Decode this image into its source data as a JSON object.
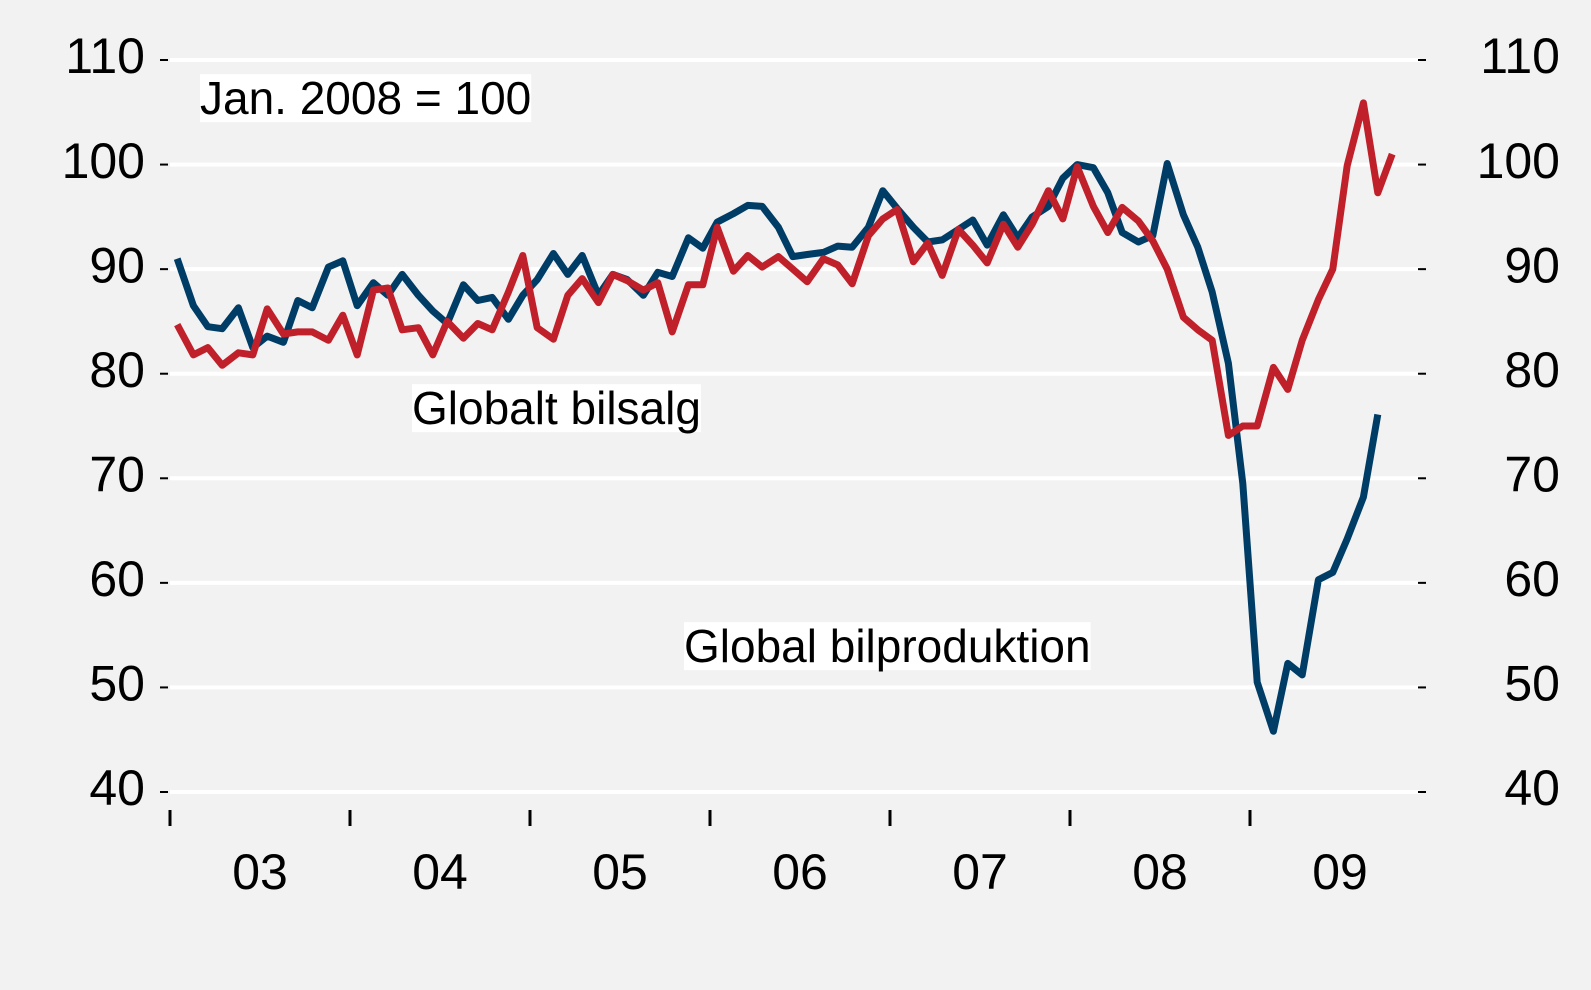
{
  "chart_data": {
    "type": "line",
    "annotations": [
      "Jan. 2008 = 100",
      "Globalt bilsalg",
      "Global bilproduktion"
    ],
    "x": [
      2003.04,
      2003.13,
      2003.21,
      2003.29,
      2003.38,
      2003.46,
      2003.54,
      2003.63,
      2003.71,
      2003.79,
      2003.88,
      2003.96,
      2004.04,
      2004.13,
      2004.21,
      2004.29,
      2004.38,
      2004.46,
      2004.54,
      2004.63,
      2004.71,
      2004.79,
      2004.88,
      2004.96,
      2005.04,
      2005.13,
      2005.21,
      2005.29,
      2005.38,
      2005.46,
      2005.54,
      2005.63,
      2005.71,
      2005.79,
      2005.88,
      2005.96,
      2006.04,
      2006.13,
      2006.21,
      2006.29,
      2006.38,
      2006.46,
      2006.54,
      2006.63,
      2006.71,
      2006.79,
      2006.88,
      2006.96,
      2007.04,
      2007.13,
      2007.21,
      2007.29,
      2007.38,
      2007.46,
      2007.54,
      2007.63,
      2007.71,
      2007.79,
      2007.88,
      2007.96,
      2008.04,
      2008.13,
      2008.21,
      2008.29,
      2008.38,
      2008.46,
      2008.54,
      2008.63,
      2008.71,
      2008.79,
      2008.88,
      2008.96,
      2009.04,
      2009.13,
      2009.21,
      2009.29,
      2009.38,
      2009.46,
      2009.54,
      2009.63,
      2009.71,
      2009.79
    ],
    "series": [
      {
        "name": "Global bilproduktion",
        "color": "#003d66",
        "values": [
          91,
          86.5,
          84.5,
          84.3,
          86.3,
          82.5,
          83.6,
          83,
          87,
          86.3,
          90.2,
          90.8,
          86.5,
          88.7,
          87.5,
          89.5,
          87.5,
          86,
          84.8,
          88.5,
          87,
          87.3,
          85.2,
          87.5,
          89,
          91.5,
          89.5,
          91.3,
          87.5,
          89.5,
          89,
          87.5,
          89.7,
          89.3,
          93,
          92,
          94.5,
          95.3,
          96.1,
          96,
          94,
          91.2,
          91.4,
          91.6,
          92.2,
          92.1,
          94,
          97.5,
          95.8,
          94,
          92.6,
          92.8,
          93.8,
          94.7,
          92.3,
          95.2,
          93,
          95,
          96,
          98.7,
          100,
          99.7,
          97.3,
          93.5,
          92.6,
          93.2,
          100.1,
          95.2,
          92.1,
          87.8,
          81,
          69.5,
          50.5,
          45.8,
          52.3,
          51.2,
          60.3,
          61,
          64.2,
          68.2,
          76.1,
          null
        ]
      },
      {
        "name": "Globalt bilsalg",
        "color": "#c0202a",
        "values": [
          84.7,
          81.8,
          82.5,
          80.8,
          82,
          81.8,
          86.2,
          83.8,
          84,
          84,
          83.2,
          85.6,
          81.8,
          88,
          88.2,
          84.2,
          84.4,
          81.8,
          85,
          83.4,
          84.8,
          84.2,
          87.8,
          91.3,
          84.4,
          83.3,
          87.5,
          89.1,
          86.8,
          89.5,
          88.9,
          88,
          88.7,
          84,
          88.5,
          88.5,
          94,
          89.8,
          91.3,
          90.2,
          91.2,
          90,
          88.8,
          91,
          90.4,
          88.6,
          93.2,
          94.8,
          95.7,
          90.7,
          92.5,
          89.4,
          93.8,
          92.3,
          90.6,
          94.3,
          92.1,
          94.3,
          97.5,
          94.8,
          99.8,
          96,
          93.5,
          95.9,
          94.6,
          92.7,
          90,
          85.4,
          84.2,
          83.2,
          74.1,
          75,
          75,
          80.6,
          78.5,
          83.2,
          87.1,
          90,
          99.9,
          105.9,
          97.3,
          101
        ]
      }
    ],
    "xlim": [
      2003,
      2010
    ],
    "xticks": [
      {
        "value": 2003.5,
        "label": "03"
      },
      {
        "value": 2004.5,
        "label": "04"
      },
      {
        "value": 2005.5,
        "label": "05"
      },
      {
        "value": 2006.5,
        "label": "06"
      },
      {
        "value": 2007.5,
        "label": "07"
      },
      {
        "value": 2008.5,
        "label": "08"
      },
      {
        "value": 2009.5,
        "label": "09"
      }
    ],
    "xtick_marks": [
      2003,
      2004,
      2005,
      2006,
      2007,
      2008,
      2009
    ],
    "ylim": [
      40,
      110
    ],
    "yticks": [
      40,
      50,
      60,
      70,
      80,
      90,
      100,
      110
    ],
    "y2lim": [
      40,
      110
    ],
    "y2ticks": [
      40,
      50,
      60,
      70,
      80,
      90,
      100,
      110
    ],
    "grid": true
  }
}
